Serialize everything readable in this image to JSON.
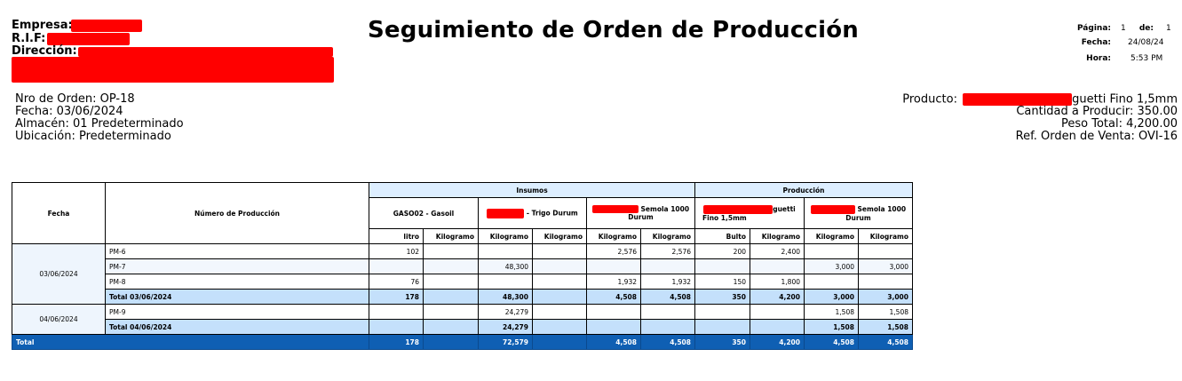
{
  "company": {
    "empresa_label": "Empresa:",
    "rif_label": "R.I.F:",
    "direccion_label": "Dirección:"
  },
  "title": "Seguimiento de Orden de Producción",
  "page_info": {
    "pagina_label": "Página:",
    "pagina_value": "1",
    "de_label": "de:",
    "de_value": "1",
    "fecha_label": "Fecha:",
    "fecha_value": "24/08/24",
    "hora_label": "Hora:",
    "hora_value": "5:53 PM"
  },
  "order": {
    "nro_orden": "Nro de Orden: OP-18",
    "fecha": "Fecha: 03/06/2024",
    "almacen": "Almacén: 01 Predeterminado",
    "ubicacion": "Ubicación: Predeterminado",
    "producto_label": "Producto:",
    "producto_suffix": "guetti Fino 1,5mm",
    "cantidad": "Cantidad a Producir: 350.00",
    "peso": "Peso Total: 4,200.00",
    "ref_orden": "Ref. Orden de Venta: OVI-16"
  },
  "table": {
    "col_fecha": "Fecha",
    "col_numero": "Número de Producción",
    "group_insumos": "Insumos",
    "group_produccion": "Producción",
    "item1": "GASO02 - Gasoil",
    "item2_suffix": "- Trigo Durum",
    "item3_line1": "Semola 1000",
    "item3_line2": "Durum",
    "item4_line1": "guetti",
    "item4_line2": "Fino 1,5mm",
    "item5_line1": "Semola 1000",
    "item5_line2": "Durum",
    "units": [
      "litro",
      "Kilogramo",
      "Kilogramo",
      "Kilogramo",
      "Kilogramo",
      "Kilogramo",
      "Bulto",
      "Kilogramo",
      "Kilogramo",
      "Kilogramo"
    ],
    "groups": [
      {
        "date": "03/06/2024",
        "rows": [
          {
            "name": "PM-6",
            "v": [
              "102",
              "",
              "",
              "",
              "2,576",
              "2,576",
              "200",
              "2,400",
              "",
              ""
            ]
          },
          {
            "name": "PM-7",
            "v": [
              "",
              "",
              "48,300",
              "",
              "",
              "",
              "",
              "",
              "3,000",
              "3,000"
            ]
          },
          {
            "name": "PM-8",
            "v": [
              "76",
              "",
              "",
              "",
              "1,932",
              "1,932",
              "150",
              "1,800",
              "",
              ""
            ]
          }
        ],
        "total_label": "Total 03/06/2024",
        "total": [
          "178",
          "",
          "48,300",
          "",
          "4,508",
          "4,508",
          "350",
          "4,200",
          "3,000",
          "3,000"
        ]
      },
      {
        "date": "04/06/2024",
        "rows": [
          {
            "name": "PM-9",
            "v": [
              "",
              "",
              "24,279",
              "",
              "",
              "",
              "",
              "",
              "1,508",
              "1,508"
            ]
          }
        ],
        "total_label": "Total 04/06/2024",
        "total": [
          "",
          "",
          "24,279",
          "",
          "",
          "",
          "",
          "",
          "1,508",
          "1,508"
        ]
      }
    ],
    "grand_label": "Total",
    "grand": [
      "178",
      "",
      "72,579",
      "",
      "4,508",
      "4,508",
      "350",
      "4,200",
      "4,508",
      "4,508"
    ]
  },
  "colors": {
    "redaction": "#ff0000",
    "group_header": "#ddeeff",
    "subtotal": "#c4e0fb",
    "grand_total": "#0f5fb3"
  }
}
